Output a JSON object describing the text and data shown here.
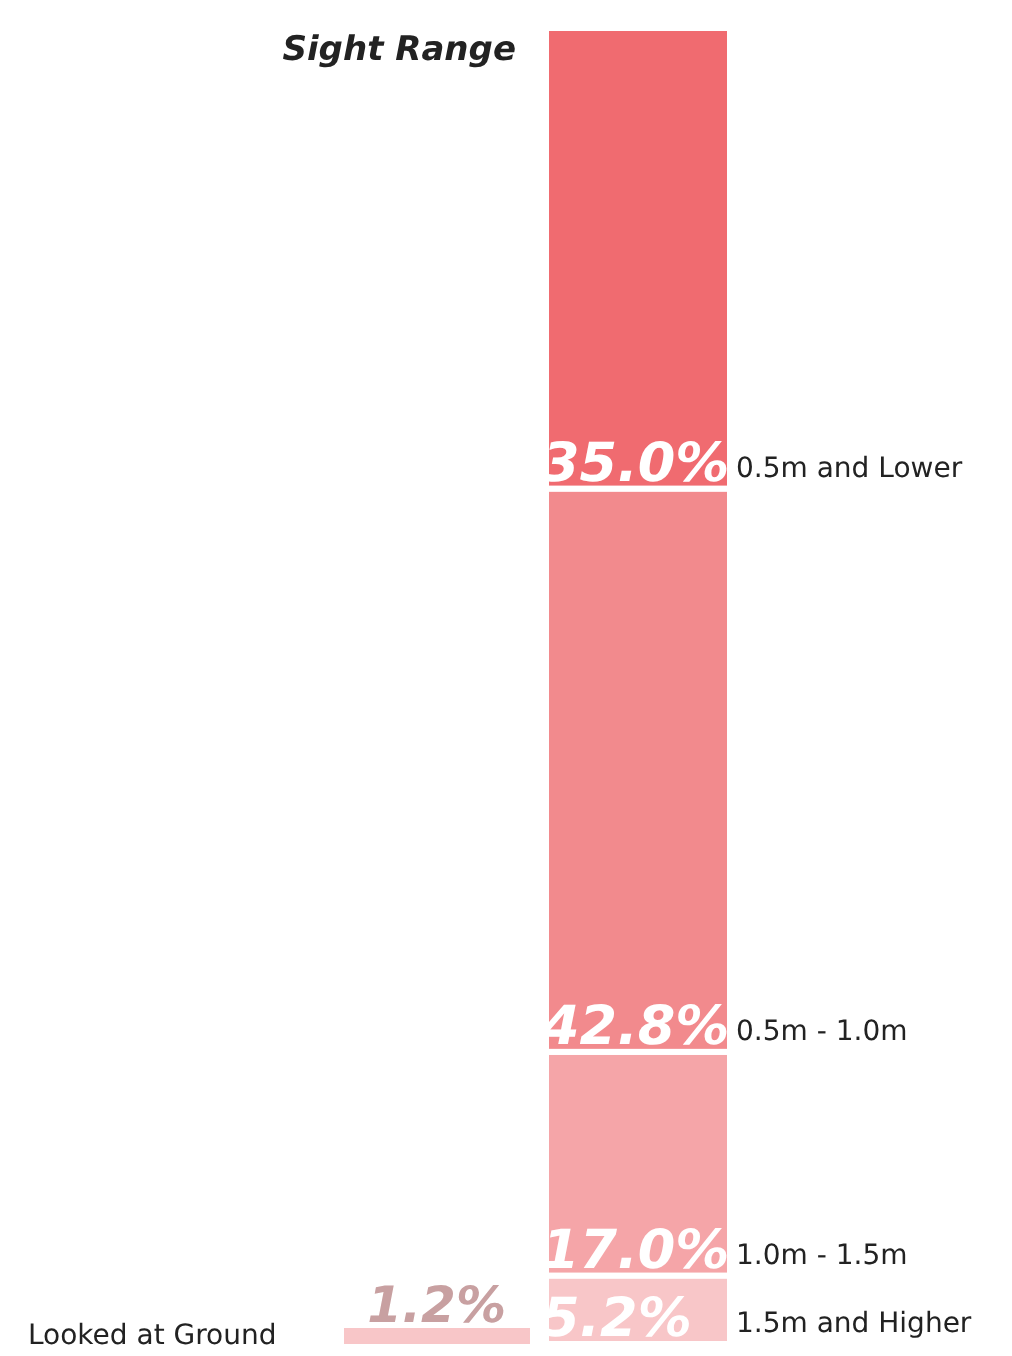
{
  "chart_data": [
    {
      "type": "bar",
      "title": "Sight Range",
      "stacked": true,
      "categories": [
        null
      ],
      "series": [
        {
          "name": "1.5m and Higher",
          "color": "#f8c6c8",
          "values": [
            5.2
          ],
          "value_labels": [
            "5.2%"
          ]
        },
        {
          "name": "1.0m - 1.5m",
          "color": "#f5a5a8",
          "values": [
            17.0
          ],
          "value_labels": [
            "17.0%"
          ]
        },
        {
          "name": "0.5m - 1.0m",
          "color": "#f28a8d",
          "values": [
            42.8
          ],
          "value_labels": [
            "42.8%"
          ]
        },
        {
          "name": "0.5m and Lower",
          "color": "#f06b70",
          "values": [
            35.0
          ],
          "value_labels": [
            "35.0%"
          ]
        }
      ]
    },
    {
      "type": "bar",
      "orientation": "horizontal",
      "categories": [
        "Looked at Ground"
      ],
      "series": [
        {
          "color": "#f8c6c8",
          "values": [
            1.2
          ],
          "value_labels": [
            "1.2%"
          ]
        }
      ]
    }
  ]
}
